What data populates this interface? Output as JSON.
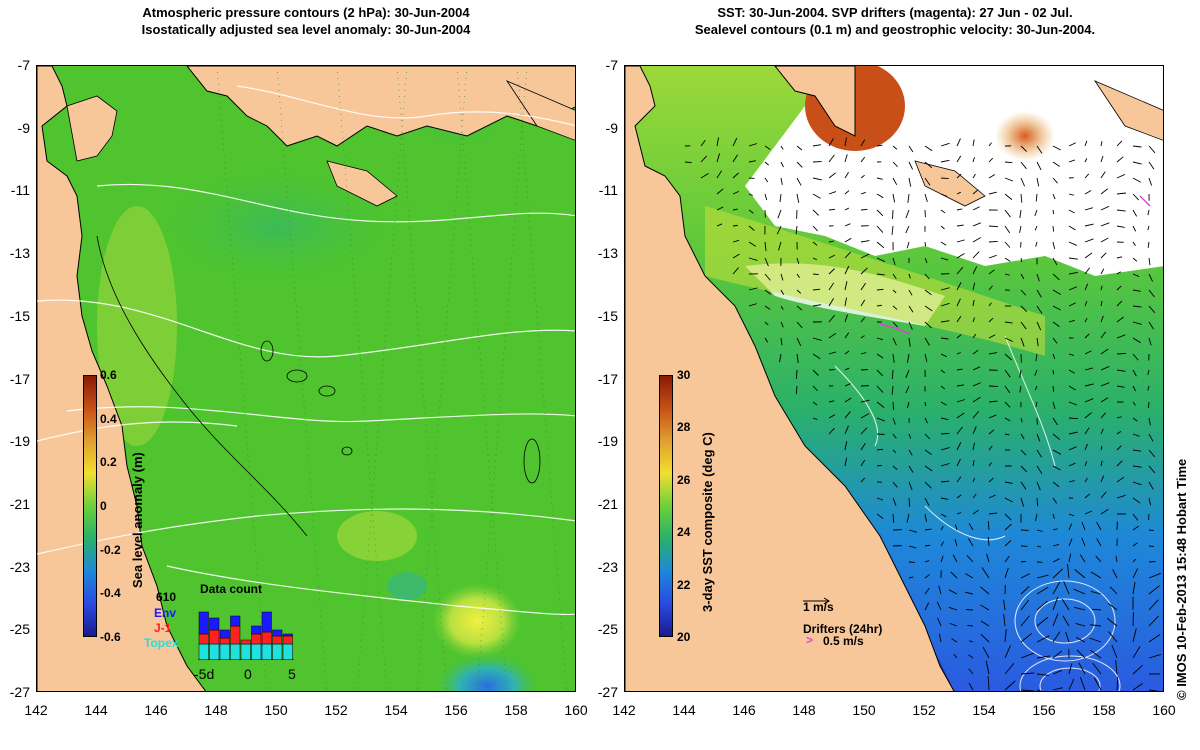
{
  "left_panel": {
    "title_line1": "Atmospheric pressure contours (2 hPa): 30-Jun-2004",
    "title_line2": "Isostatically adjusted sea level anomaly: 30-Jun-2004",
    "colorbar": {
      "title": "Sea level anomaly (m)",
      "ticks": [
        "0.6",
        "0.4",
        "0.2",
        "0",
        "-0.2",
        "-0.4",
        "-0.6"
      ]
    },
    "data_count": {
      "title": "Data count",
      "total": "610",
      "env_label": "Env",
      "j1_label": "J-1",
      "topex_label": "Topex",
      "x_ticks": [
        "-5d",
        "0",
        "5"
      ],
      "env_color": "#1a1aff",
      "j1_color": "#ff2020",
      "topex_color": "#20e0e0"
    }
  },
  "right_panel": {
    "title_line1": "SST: 30-Jun-2004. SVP drifters (magenta): 27 Jun - 02 Jul.",
    "title_line2": "Sealevel contours (0.1 m) and geostrophic velocity: 30-Jun-2004.",
    "colorbar": {
      "title": "3-day SST composite (deg C)",
      "ticks": [
        "30",
        "28",
        "26",
        "24",
        "22",
        "20"
      ]
    },
    "velocity_scale_label": "1 m/s",
    "drifters_label": "Drifters (24hr)",
    "drifter_speed_label": "0.5 m/s",
    "drifter_color": "#e040e0"
  },
  "axes": {
    "y_ticks": [
      "-7",
      "-9",
      "-11",
      "-13",
      "-15",
      "-17",
      "-19",
      "-21",
      "-23",
      "-25",
      "-27"
    ],
    "x_ticks": [
      "142",
      "144",
      "146",
      "148",
      "150",
      "152",
      "154",
      "156",
      "158",
      "160"
    ]
  },
  "colors": {
    "land": "#f7c79a",
    "ocean_green": "#4fc42e"
  },
  "credit": "© IMOS 10-Feb-2013 15:48 Hobart Time"
}
